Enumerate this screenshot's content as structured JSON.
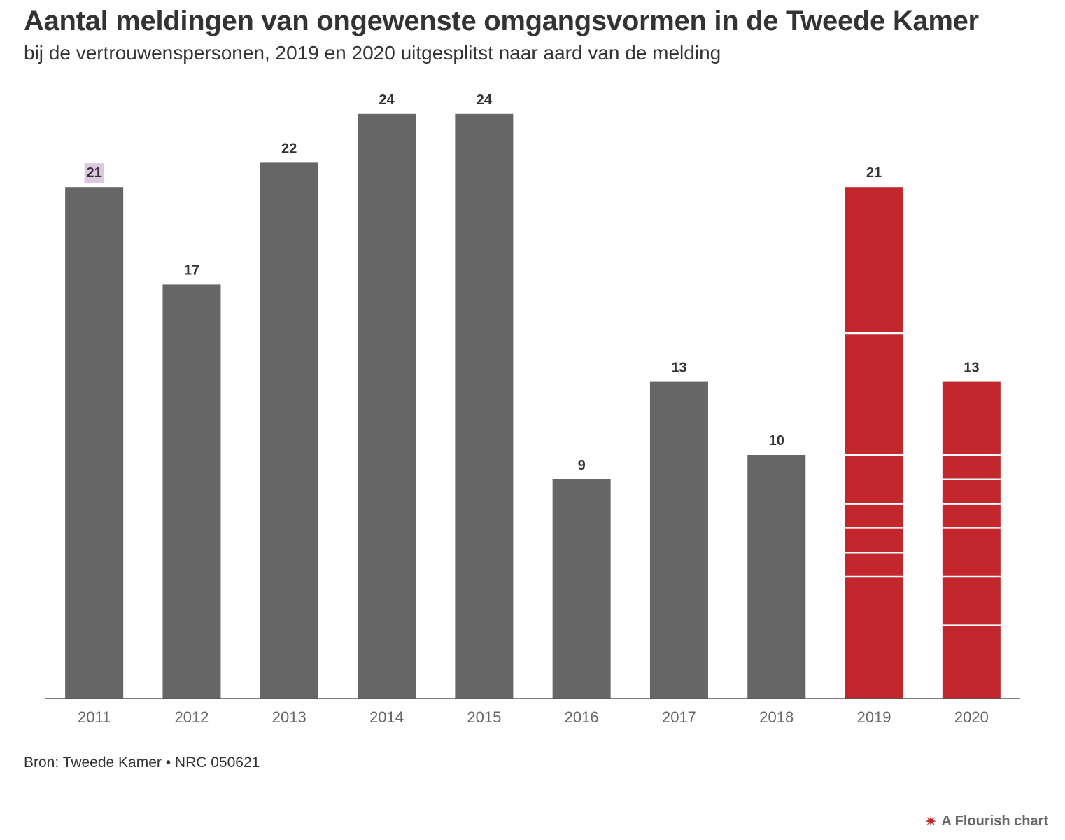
{
  "header": {
    "title": "Aantal meldingen van ongewenste omgangsvormen in de Tweede Kamer",
    "subtitle": "bij de vertrouwenspersonen, 2019 en 2020 uitgesplitst naar aard van de melding"
  },
  "footer": {
    "source": "Bron: Tweede Kamer • NRC 050621",
    "credit": "A Flourish chart",
    "credit_icon": "flourish-logo-icon"
  },
  "colors": {
    "bar_default": "#666666",
    "bar_highlight": "#c1272d",
    "segment_divider": "#ffffff",
    "axis": "#555555",
    "label_highlight_bg": "#dcc6e0"
  },
  "chart_data": {
    "type": "bar",
    "categories": [
      "2011",
      "2012",
      "2013",
      "2014",
      "2015",
      "2016",
      "2017",
      "2018",
      "2019",
      "2020"
    ],
    "values": [
      21,
      17,
      22,
      24,
      24,
      9,
      13,
      10,
      21,
      13
    ],
    "data_labels": [
      "21",
      "17",
      "22",
      "24",
      "24",
      "9",
      "13",
      "10",
      "21",
      "13"
    ],
    "highlighted_categories": [
      "2019",
      "2020"
    ],
    "stacked_segments": {
      "2019": [
        6,
        5,
        2,
        1,
        1,
        1,
        5
      ],
      "2020": [
        3,
        1,
        1,
        1,
        2,
        2,
        3
      ]
    },
    "ylim": [
      0,
      24
    ],
    "title": "Aantal meldingen van ongewenste omgangsvormen in de Tweede Kamer",
    "xlabel": "",
    "ylabel": "",
    "grid": false,
    "legend": "none"
  }
}
